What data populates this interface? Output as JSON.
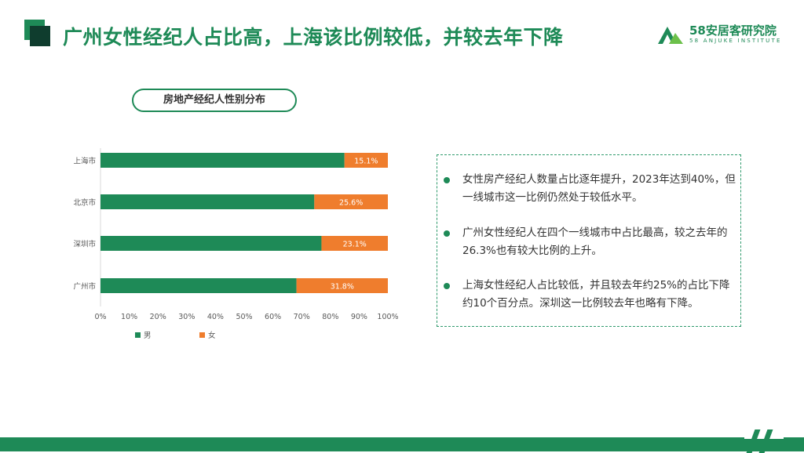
{
  "header": {
    "title": "广州女性经纪人占比高，上海该比例较低，并较去年下降",
    "logo_name": "58安居客研究院",
    "logo_sub": "58 ANJUKE INSTITUTE"
  },
  "chart_title": "房地产经纪人性别分布",
  "chart_data": {
    "type": "bar",
    "orientation": "horizontal",
    "stacked": "percent",
    "title": "房地产经纪人性别分布",
    "categories": [
      "上海市",
      "北京市",
      "深圳市",
      "广州市"
    ],
    "series": [
      {
        "name": "男",
        "values": [
          84.9,
          74.4,
          76.9,
          68.2
        ],
        "color": "#1e8a57"
      },
      {
        "name": "女",
        "values": [
          15.1,
          25.6,
          23.1,
          31.8
        ],
        "color": "#ef7d2d"
      }
    ],
    "data_labels": [
      "15.1%",
      "25.6%",
      "23.1%",
      "31.8%"
    ],
    "x_ticks": [
      "0%",
      "10%",
      "20%",
      "30%",
      "40%",
      "50%",
      "60%",
      "70%",
      "80%",
      "90%",
      "100%"
    ],
    "xlim": [
      0,
      100
    ],
    "grid": false,
    "legend_position": "bottom-left"
  },
  "bullets": [
    "女性房产经纪人数量占比逐年提升，2023年达到40%，但一线城市这一比例仍然处于较低水平。",
    "广州女性经纪人在四个一线城市中占比最高，较之去年的26.3%也有较大比例的上升。",
    "上海女性经纪人占比较低，并且较去年约25%的占比下降约10个百分点。深圳这一比例较去年也略有下降。"
  ]
}
